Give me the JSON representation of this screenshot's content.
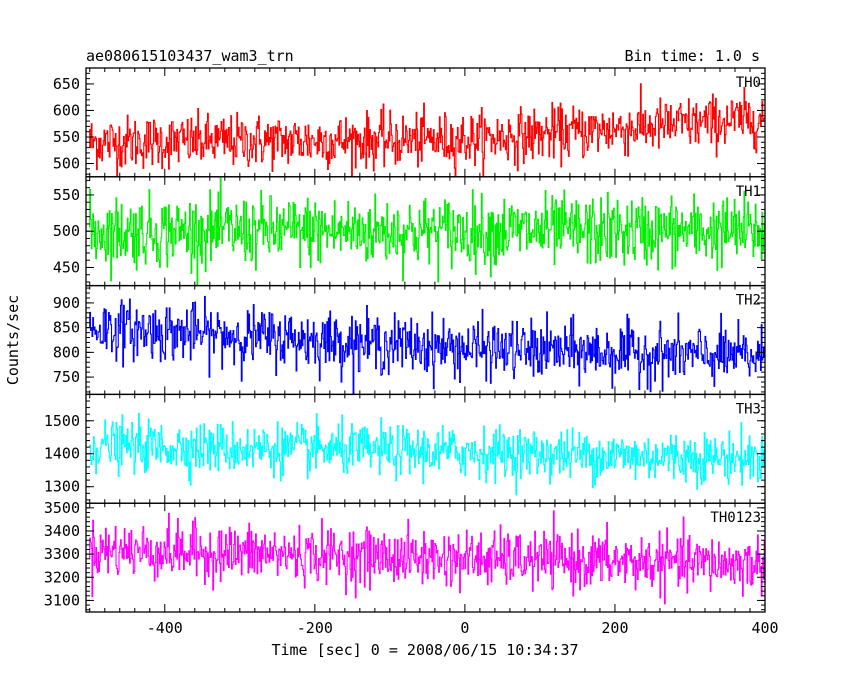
{
  "chart_data": {
    "type": "line",
    "title": "ae080615103437_wam3_trn",
    "subtitle": "Bin time: 1.0 s",
    "xlabel": "Time [sec] 0 = 2008/06/15 10:34:37",
    "ylabel": "Counts/sec",
    "xlim": [
      -505,
      400
    ],
    "x_ticks": [
      -400,
      -200,
      0,
      200,
      400
    ],
    "x_step": 1.0,
    "series": [
      {
        "name": "TH0",
        "color": "#ff0000",
        "ylim": [
          475,
          680
        ],
        "y_ticks": [
          500,
          550,
          600,
          650
        ],
        "trend": [
          [
            -500,
            540
          ],
          [
            0,
            545
          ],
          [
            400,
            585
          ]
        ],
        "noise": 25
      },
      {
        "name": "TH1",
        "color": "#00ee00",
        "ylim": [
          425,
          575
        ],
        "y_ticks": [
          450,
          500,
          550
        ],
        "trend": [
          [
            -500,
            500
          ],
          [
            0,
            500
          ],
          [
            400,
            500
          ]
        ],
        "noise": 24
      },
      {
        "name": "TH2",
        "color": "#0000ff",
        "ylim": [
          715,
          935
        ],
        "y_ticks": [
          750,
          800,
          850,
          900
        ],
        "trend": [
          [
            -500,
            850
          ],
          [
            0,
            808
          ],
          [
            400,
            790
          ]
        ],
        "noise": 29
      },
      {
        "name": "TH3",
        "color": "#00ffff",
        "ylim": [
          1250,
          1580
        ],
        "y_ticks": [
          1300,
          1400,
          1500
        ],
        "trend": [
          [
            -500,
            1425
          ],
          [
            0,
            1405
          ],
          [
            400,
            1385
          ]
        ],
        "noise": 38
      },
      {
        "name": "TH0123",
        "color": "#ff00ff",
        "ylim": [
          3050,
          3520
        ],
        "y_ticks": [
          3100,
          3200,
          3300,
          3400,
          3500
        ],
        "trend": [
          [
            -500,
            3320
          ],
          [
            0,
            3280
          ],
          [
            400,
            3255
          ]
        ],
        "noise": 60
      }
    ]
  }
}
